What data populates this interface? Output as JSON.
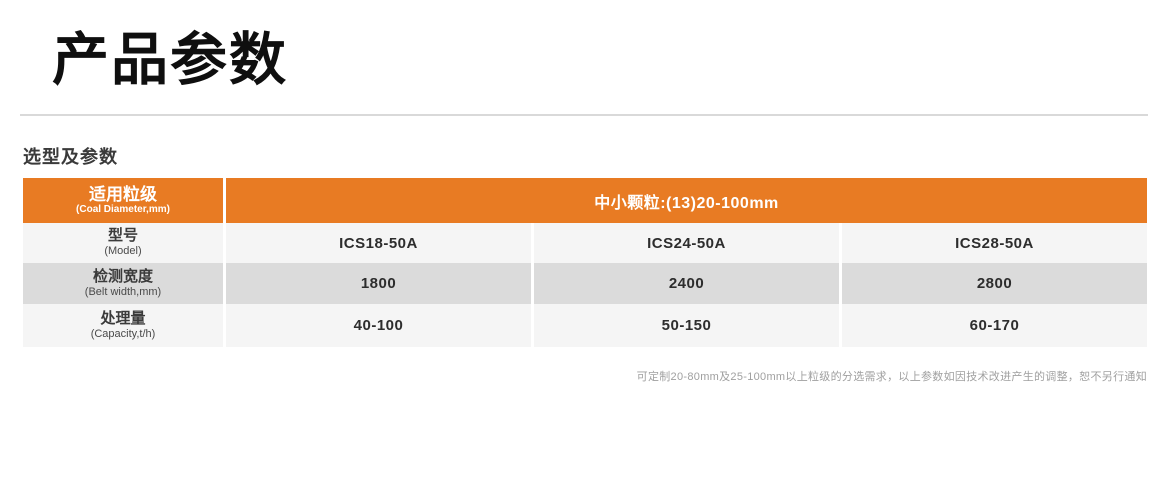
{
  "page": {
    "title": "产品参数",
    "subtitle": "选型及参数",
    "footnote": "可定制20-80mm及25-100mm以上粒级的分选需求，以上参数如因技术改进产生的调整，恕不另行通知"
  },
  "colors": {
    "accent_orange": "#e87b23",
    "row_gray": "#dbdbdb",
    "row_light": "#f5f5f5",
    "divider": "#d9d9d9"
  },
  "table": {
    "header": {
      "row_label": "适用粒级",
      "row_label_sub": "(Coal Diameter,mm)",
      "span_label": "中小颗粒:(13)20-100mm"
    },
    "rows": [
      {
        "label": "型号",
        "label_sub": "(Model)",
        "values": [
          "ICS18-50A",
          "ICS24-50A",
          "ICS28-50A"
        ]
      },
      {
        "label": "检测宽度",
        "label_sub": "(Belt width,mm)",
        "values": [
          "1800",
          "2400",
          "2800"
        ]
      },
      {
        "label": "处理量",
        "label_sub": "(Capacity,t/h)",
        "values": [
          "40-100",
          "50-150",
          "60-170"
        ]
      }
    ]
  }
}
